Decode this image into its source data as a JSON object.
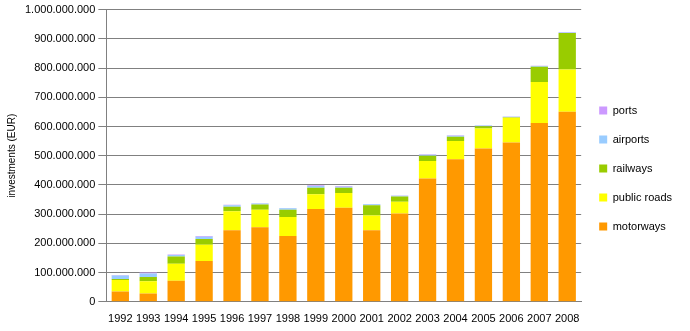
{
  "chart_data": {
    "type": "bar",
    "y_label": "investments (EUR)",
    "categories": [
      "1992",
      "1993",
      "1994",
      "1995",
      "1996",
      "1997",
      "1998",
      "1999",
      "2000",
      "2001",
      "2002",
      "2003",
      "2004",
      "2005",
      "2006",
      "2007",
      "2008"
    ],
    "series": [
      {
        "name": "motorways",
        "color": "#ff9900",
        "values": [
          35000000,
          28000000,
          72000000,
          140000000,
          245000000,
          255000000,
          225000000,
          318000000,
          322000000,
          245000000,
          302000000,
          422000000,
          488000000,
          525000000,
          545000000,
          612000000,
          650000000
        ]
      },
      {
        "name": "public roads",
        "color": "#ffff00",
        "values": [
          40000000,
          42000000,
          58000000,
          55000000,
          65000000,
          60000000,
          65000000,
          50000000,
          50000000,
          50000000,
          40000000,
          60000000,
          62000000,
          68000000,
          85000000,
          140000000,
          145000000
        ]
      },
      {
        "name": "railways",
        "color": "#99cc00",
        "values": [
          3000000,
          15000000,
          25000000,
          20000000,
          15000000,
          18000000,
          25000000,
          22000000,
          18000000,
          35000000,
          18000000,
          18000000,
          15000000,
          8000000,
          2000000,
          52000000,
          125000000
        ]
      },
      {
        "name": "airports",
        "color": "#99ccff",
        "values": [
          12000000,
          12000000,
          5000000,
          8000000,
          5000000,
          3000000,
          5000000,
          6000000,
          4000000,
          4000000,
          3000000,
          3000000,
          3000000,
          2000000,
          1000000,
          3000000,
          2000000
        ]
      },
      {
        "name": "ports",
        "color": "#cc99ff",
        "values": [
          2000000,
          3000000,
          2000000,
          2000000,
          2000000,
          1000000,
          1000000,
          3000000,
          2000000,
          1000000,
          1000000,
          2000000,
          2000000,
          1000000,
          1000000,
          1000000,
          1000000
        ]
      }
    ],
    "ylim": [
      0,
      1000000000
    ],
    "yticks": [
      0,
      {
        "value": 100000000,
        "label": "100.000.000"
      },
      {
        "value": 200000000,
        "label": "200.000.000"
      },
      {
        "value": 300000000,
        "label": "300.000.000"
      },
      {
        "value": 400000000,
        "label": "400.000.000"
      },
      {
        "value": 500000000,
        "label": "500.000.000"
      },
      {
        "value": 600000000,
        "label": "600.000.000"
      },
      {
        "value": 700000000,
        "label": "700.000.000"
      },
      {
        "value": 800000000,
        "label": "800.000.000"
      },
      {
        "value": 900000000,
        "label": "900.000.000"
      },
      {
        "value": 1000000000,
        "label": "1.000.000.000"
      }
    ],
    "stacked": true,
    "grid": true,
    "legend": "right"
  }
}
